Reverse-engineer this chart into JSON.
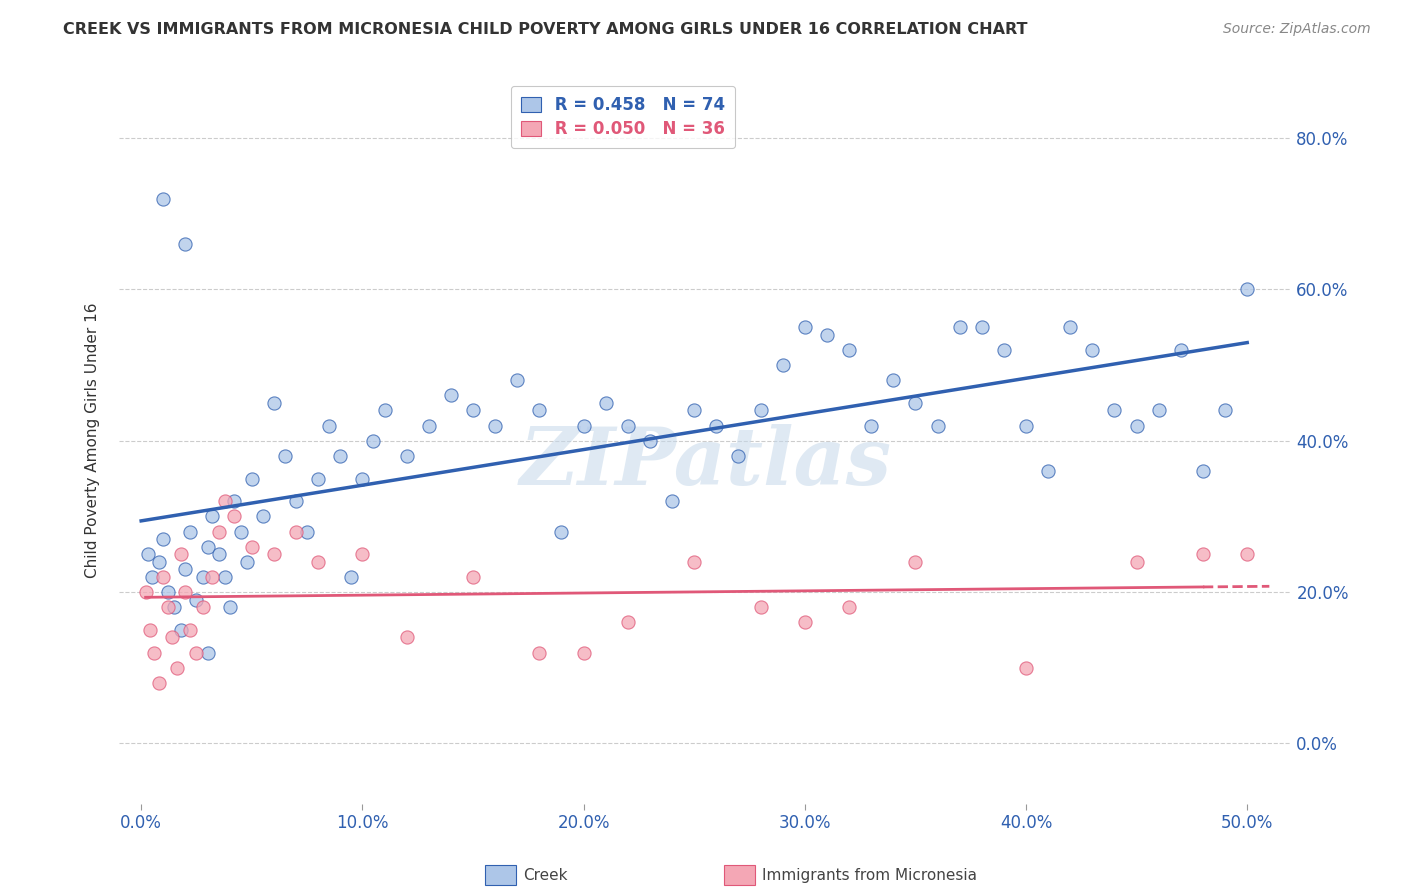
{
  "title": "CREEK VS IMMIGRANTS FROM MICRONESIA CHILD POVERTY AMONG GIRLS UNDER 16 CORRELATION CHART",
  "source": "Source: ZipAtlas.com",
  "ylabel": "Child Poverty Among Girls Under 16",
  "xlabel_ticks": [
    "0.0%",
    "10.0%",
    "20.0%",
    "30.0%",
    "40.0%",
    "50.0%"
  ],
  "xlabel_vals": [
    0,
    10,
    20,
    30,
    40,
    50
  ],
  "ylabel_ticks": [
    "0.0%",
    "20.0%",
    "40.0%",
    "60.0%",
    "80.0%"
  ],
  "ylabel_vals": [
    0,
    20,
    40,
    60,
    80
  ],
  "xlim": [
    -1,
    52
  ],
  "ylim": [
    -8,
    88
  ],
  "legend1_R": "0.458",
  "legend1_N": "74",
  "legend2_R": "0.050",
  "legend2_N": "36",
  "creek_color": "#adc6e8",
  "micronesia_color": "#f4a7b5",
  "creek_line_color": "#3060b0",
  "micronesia_line_color": "#e05878",
  "watermark": "ZIPatlas",
  "creek_points_x": [
    0.3,
    0.5,
    0.8,
    1.0,
    1.2,
    1.5,
    1.8,
    2.0,
    2.2,
    2.5,
    2.8,
    3.0,
    3.2,
    3.5,
    3.8,
    4.0,
    4.2,
    4.5,
    4.8,
    5.0,
    5.5,
    6.0,
    6.5,
    7.0,
    7.5,
    8.0,
    8.5,
    9.0,
    9.5,
    10.0,
    10.5,
    11.0,
    12.0,
    13.0,
    14.0,
    15.0,
    16.0,
    17.0,
    18.0,
    19.0,
    20.0,
    21.0,
    22.0,
    23.0,
    24.0,
    25.0,
    26.0,
    27.0,
    28.0,
    29.0,
    30.0,
    31.0,
    32.0,
    33.0,
    34.0,
    35.0,
    36.0,
    37.0,
    38.0,
    39.0,
    40.0,
    41.0,
    42.0,
    43.0,
    44.0,
    45.0,
    46.0,
    47.0,
    48.0,
    49.0,
    50.0,
    1.0,
    2.0,
    3.0
  ],
  "creek_points_y": [
    25,
    22,
    24,
    27,
    20,
    18,
    15,
    23,
    28,
    19,
    22,
    26,
    30,
    25,
    22,
    18,
    32,
    28,
    24,
    35,
    30,
    45,
    38,
    32,
    28,
    35,
    42,
    38,
    22,
    35,
    40,
    44,
    38,
    42,
    46,
    44,
    42,
    48,
    44,
    28,
    42,
    45,
    42,
    40,
    32,
    44,
    42,
    38,
    44,
    50,
    55,
    54,
    52,
    42,
    48,
    45,
    42,
    55,
    55,
    52,
    42,
    36,
    55,
    52,
    44,
    42,
    44,
    52,
    36,
    44,
    60,
    72,
    66,
    12
  ],
  "micronesia_points_x": [
    0.2,
    0.4,
    0.6,
    0.8,
    1.0,
    1.2,
    1.4,
    1.6,
    1.8,
    2.0,
    2.2,
    2.5,
    2.8,
    3.2,
    3.5,
    3.8,
    4.2,
    5.0,
    6.0,
    7.0,
    8.0,
    10.0,
    12.0,
    15.0,
    18.0,
    20.0,
    22.0,
    25.0,
    28.0,
    30.0,
    32.0,
    35.0,
    40.0,
    45.0,
    48.0,
    50.0
  ],
  "micronesia_points_y": [
    20,
    15,
    12,
    8,
    22,
    18,
    14,
    10,
    25,
    20,
    15,
    12,
    18,
    22,
    28,
    32,
    30,
    26,
    25,
    28,
    24,
    25,
    14,
    22,
    12,
    12,
    16,
    24,
    18,
    16,
    18,
    24,
    10,
    24,
    25,
    25
  ]
}
